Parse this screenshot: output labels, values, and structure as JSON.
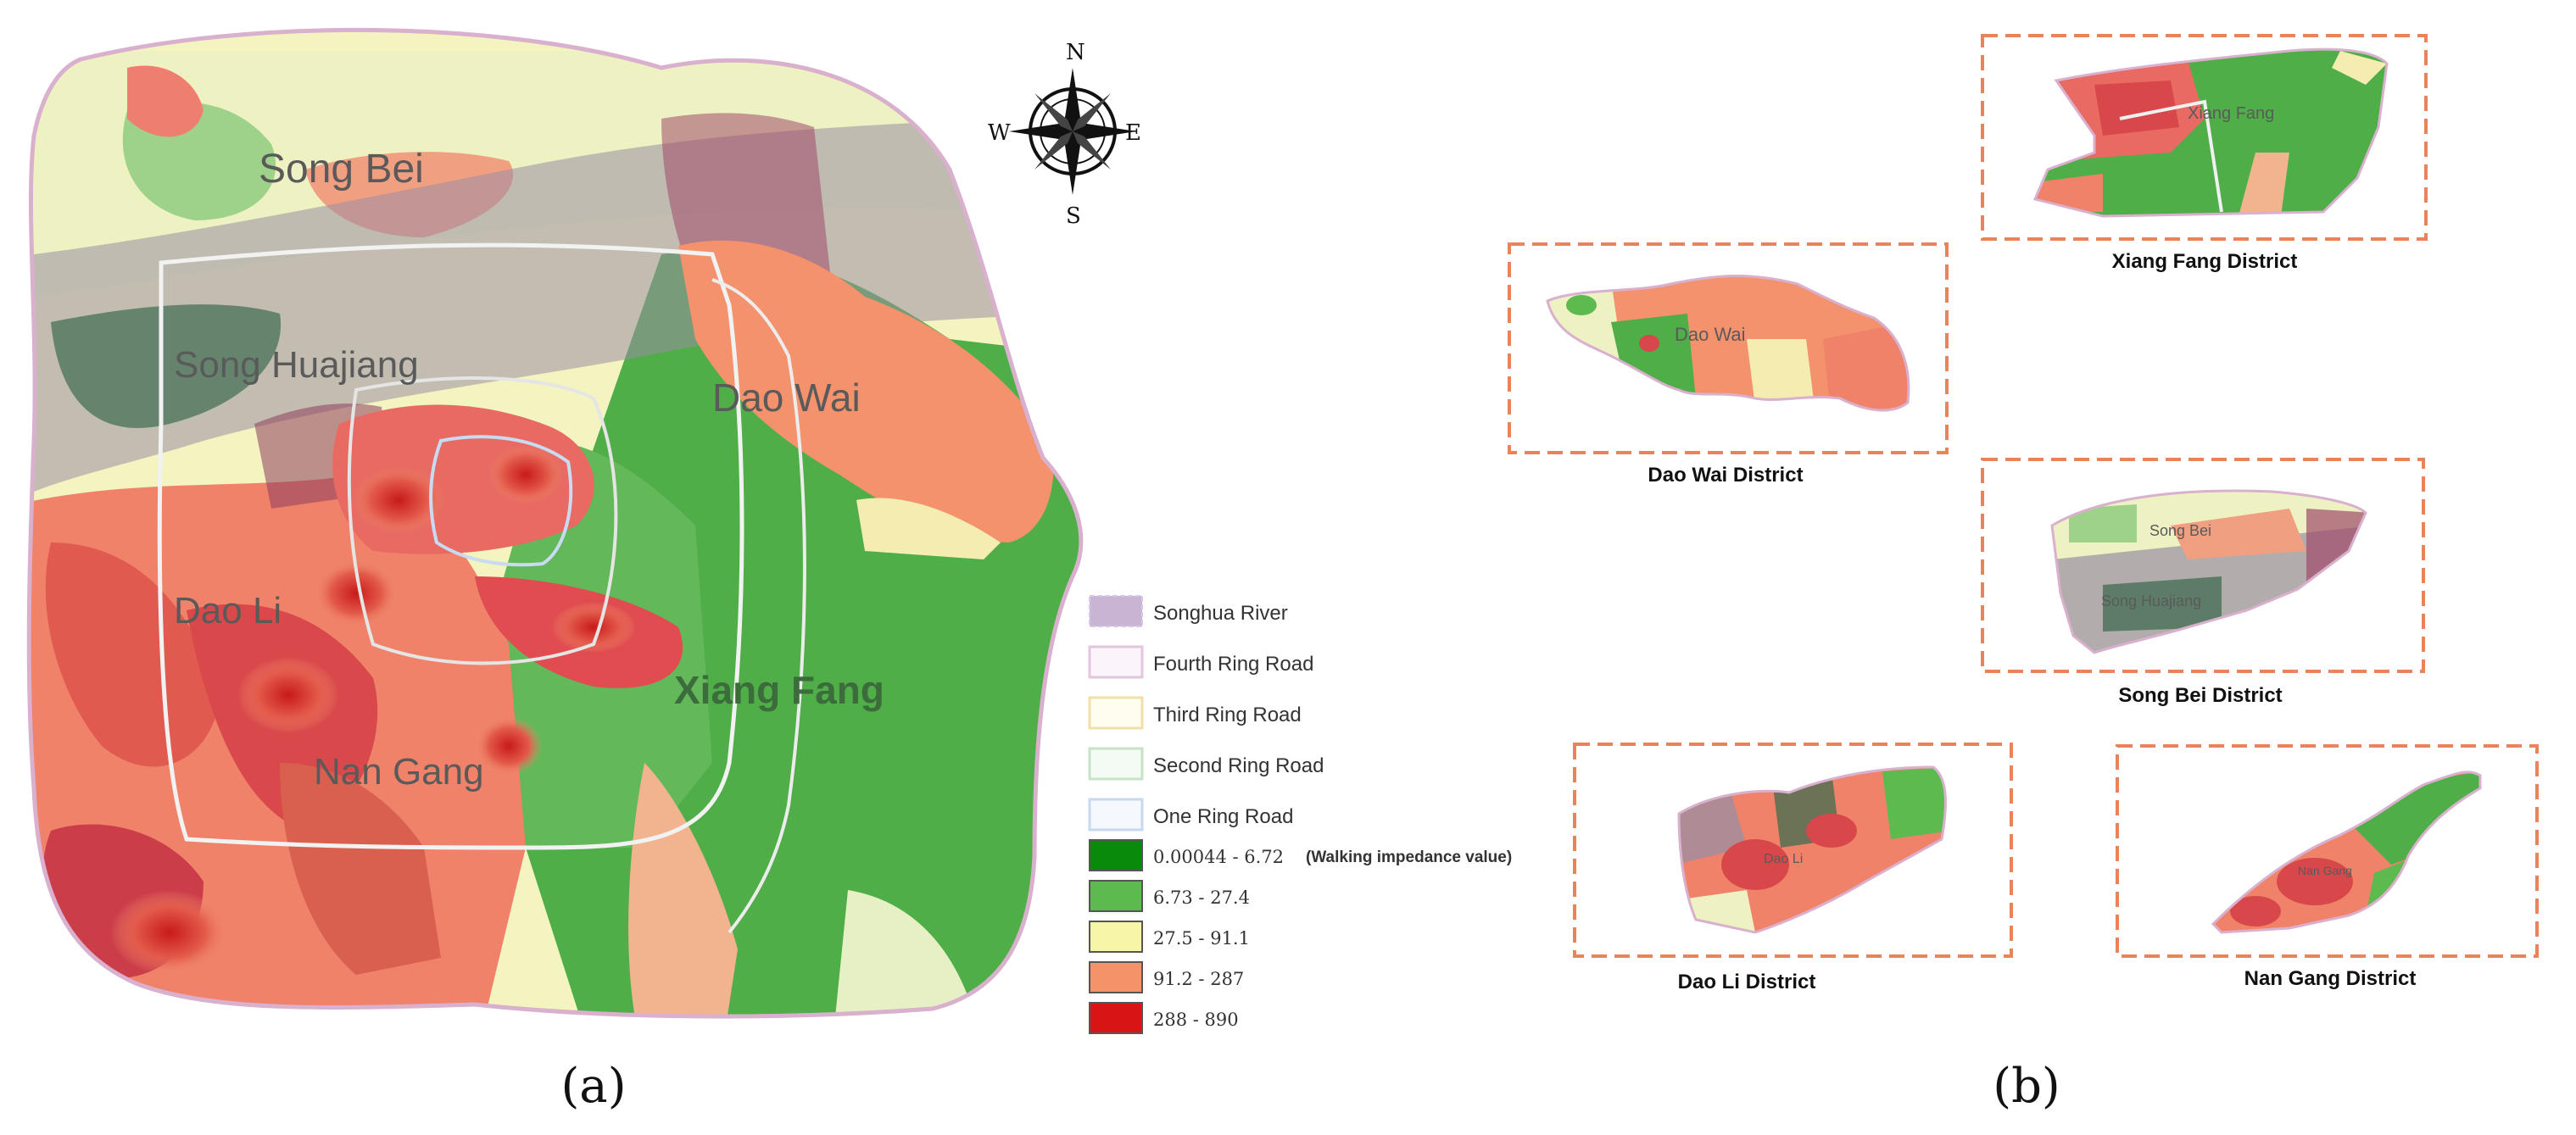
{
  "panels": {
    "a": "(a)",
    "b": "(b)"
  },
  "map_a": {
    "labels": {
      "song_bei": "Song Bei",
      "song_huajiang": "Song Huajiang",
      "dao_wai": "Dao Wai",
      "dao_li": "Dao Li",
      "nan_gang": "Nan Gang",
      "xiang_fang": "Xiang Fang"
    },
    "compass": {
      "n": "N",
      "s": "S",
      "e": "E",
      "w": "W"
    }
  },
  "legend": {
    "items": [
      {
        "label": "Songhua River",
        "color": "#c9b4d4"
      },
      {
        "label": "Fourth Ring Road",
        "color": "#e8c8e0"
      },
      {
        "label": "Third Ring Road",
        "color": "#f3e6b0"
      },
      {
        "label": "Second Ring Road",
        "color": "#c9e6c9"
      },
      {
        "label": "One Ring Road",
        "color": "#c9dcf2"
      }
    ],
    "classes": [
      {
        "label": "0.00044 - 6.72",
        "color": "#0a8a0a"
      },
      {
        "label": "6.73 - 27.4",
        "color": "#5cba4f"
      },
      {
        "label": "27.5 - 91.1",
        "color": "#f7f6a8"
      },
      {
        "label": "91.2 - 287",
        "color": "#f4936a"
      },
      {
        "label": "288 - 890",
        "color": "#d81414"
      }
    ],
    "class_note": "(Walking impedance value)"
  },
  "districts": {
    "xiang_fang": {
      "title": "Xiang Fang District",
      "inner": "Xiang Fang"
    },
    "dao_wai": {
      "title": "Dao Wai District",
      "inner": "Dao Wai"
    },
    "song_bei": {
      "title": "Song Bei District",
      "inner1": "Song Bei",
      "inner2": "Song Huajiang"
    },
    "dao_li": {
      "title": "Dao Li District",
      "inner": "Dao Li"
    },
    "nan_gang": {
      "title": "Nan Gang District",
      "inner": "Nan Gang"
    }
  }
}
